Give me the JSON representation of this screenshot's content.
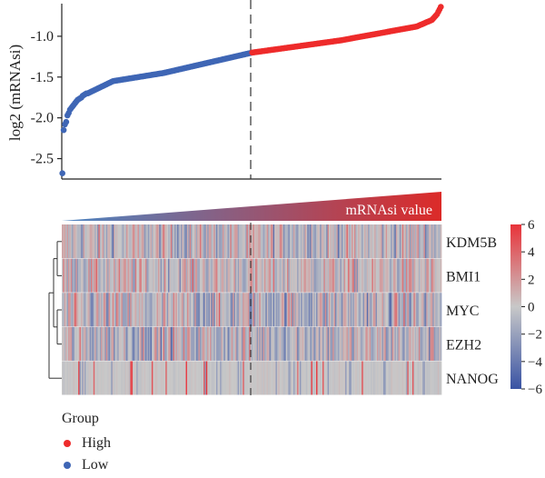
{
  "chart_data": [
    {
      "type": "scatter",
      "ylabel": "log2 (mRNAsi)",
      "yticks": [
        "-1.0",
        "-1.5",
        "-2.0",
        "-2.5"
      ],
      "ylim": [
        -2.75,
        -0.6
      ],
      "n_samples": 300,
      "split_index": 150,
      "grid": false,
      "colors": {
        "High": "#ee2b2b",
        "Low": "#3f66b5"
      },
      "x_description": "samples ranked by mRNAsi value",
      "low_head": [
        -2.68,
        -2.15,
        -2.08,
        -2.05,
        -1.97,
        -1.94,
        -1.9,
        -1.88,
        -1.86,
        -1.84,
        -1.82,
        -1.8,
        -1.78,
        -1.77,
        -1.76,
        -1.75,
        -1.73,
        -1.72,
        -1.71,
        -1.7
      ],
      "curve": [
        [
          20,
          -1.7
        ],
        [
          40,
          -1.55
        ],
        [
          80,
          -1.45
        ],
        [
          150,
          -1.2
        ],
        [
          220,
          -1.05
        ],
        [
          280,
          -0.88
        ],
        [
          292,
          -0.8
        ],
        [
          296,
          -0.73
        ],
        [
          299,
          -0.64
        ]
      ],
      "series": [
        {
          "name": "Low",
          "range": "samples 1–150"
        },
        {
          "name": "High",
          "range": "samples 151–300"
        }
      ]
    },
    {
      "type": "heatmap",
      "rows": [
        "KDM5B",
        "BMI1",
        "MYC",
        "EZH2",
        "NANOG"
      ],
      "n_columns": 300,
      "color_range": [
        -6,
        6
      ],
      "colorbar_ticks": [
        "6",
        "4",
        "2",
        "0",
        "−2",
        "−4",
        "−6"
      ],
      "colorbar_values": [
        6,
        4,
        2,
        0,
        -2,
        -4,
        -6
      ],
      "colors": {
        "low": "#3953a4",
        "mid": "#c8c8c8",
        "high": "#e8333a"
      },
      "row_bias": {
        "KDM5B": -0.2,
        "BMI1": 0.2,
        "MYC": -0.6,
        "EZH2": -0.4,
        "NANOG": 0.0
      },
      "row_spread": {
        "KDM5B": 2.4,
        "BMI1": 2.2,
        "MYC": 2.8,
        "EZH2": 2.6,
        "NANOG": 0.6
      },
      "dendrogram": "left",
      "annotation_bar": {
        "label": "mRNAsi value",
        "from_color": "#4c86c4",
        "to_color": "#dc2a28"
      }
    }
  ],
  "legend": {
    "title": "Group",
    "items": [
      {
        "label": "High",
        "color": "#ee2b2b"
      },
      {
        "label": "Low",
        "color": "#3f66b5"
      }
    ]
  }
}
